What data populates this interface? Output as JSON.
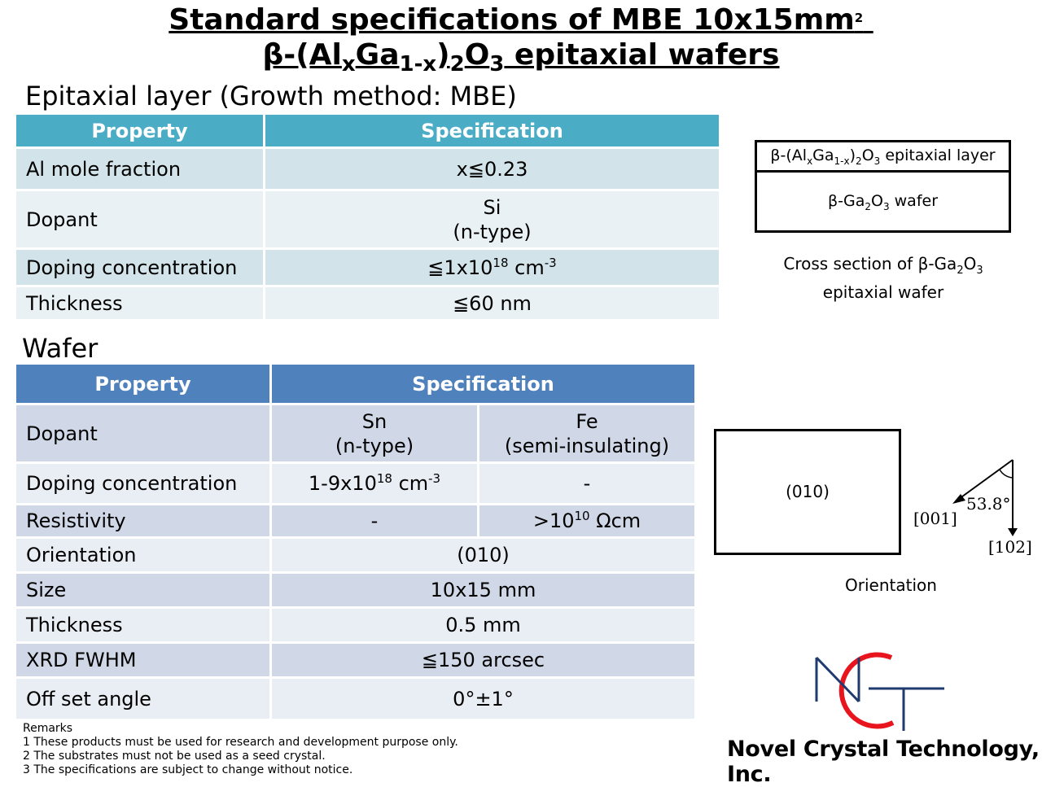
{
  "title": {
    "line1": "Standard specifications of MBE 10x15mm",
    "line1_sup": "2",
    "line2_parts": [
      "β-(Al",
      "x",
      "Ga",
      "1-x",
      ")",
      "2",
      "O",
      "3",
      " epitaxial wafers"
    ]
  },
  "epitaxial": {
    "heading": "Epitaxial layer (Growth method: MBE)",
    "header": [
      "Property",
      "Specification"
    ],
    "rows": [
      {
        "property": "Al mole fraction",
        "value": "x≦0.23"
      },
      {
        "property": "Dopant",
        "value_line1": "Si",
        "value_line2": "(n-type)"
      },
      {
        "property": "Doping concentration",
        "value_pre": "≦1x10",
        "value_sup": "18",
        "value_post": " cm",
        "value_unit_sup": "-3"
      },
      {
        "property": "Thickness",
        "value": "≦60 nm"
      }
    ]
  },
  "wafer": {
    "heading": "Wafer",
    "header": [
      "Property",
      "Specification"
    ],
    "rows": {
      "dopant": {
        "property": "Dopant",
        "sn_line1": "Sn",
        "sn_line2": "(n-type)",
        "fe_line1": "Fe",
        "fe_line2": "(semi-insulating)"
      },
      "doping": {
        "property": "Doping concentration",
        "sn_pre": "1-9x10",
        "sn_sup": "18",
        "sn_post": " cm",
        "sn_unit_sup": "-3",
        "fe": "-"
      },
      "resistivity": {
        "property": "Resistivity",
        "sn": "-",
        "fe_pre": ">10",
        "fe_sup": "10",
        "fe_post": " Ωcm"
      },
      "orientation": {
        "property": "Orientation",
        "value": "(010)"
      },
      "size": {
        "property": "Size",
        "value": "10x15 mm"
      },
      "thickness": {
        "property": "Thickness",
        "value": "0.5 mm"
      },
      "xrd": {
        "property": "XRD FWHM",
        "value": "≦150 arcsec"
      },
      "offset": {
        "property": "Off set angle",
        "value": "0°±1°"
      }
    }
  },
  "cross_section": {
    "layer_label": "β-(AlxGa1-x)2O3 epitaxial layer",
    "wafer_label": "β-Ga2O3 wafer",
    "caption_line1": "Cross section of β-Ga2O3",
    "caption_line2": "epitaxial wafer"
  },
  "orientation_diagram": {
    "face_label": "(010)",
    "angle": "53.8°",
    "dir1": "[001]",
    "dir2": "[102]",
    "caption": "Orientation"
  },
  "remarks": {
    "heading": "Remarks",
    "items": [
      "1 These products must be used for research and development purpose only.",
      "2 The substrates must not be used as a seed crystal.",
      "3 The specifications are subject to change without notice."
    ]
  },
  "company": {
    "name": "Novel Crystal Technology, Inc.",
    "logo_text": "NCT",
    "logo_colors": {
      "line": "#1f3a6e",
      "arc": "#e8141e"
    }
  }
}
